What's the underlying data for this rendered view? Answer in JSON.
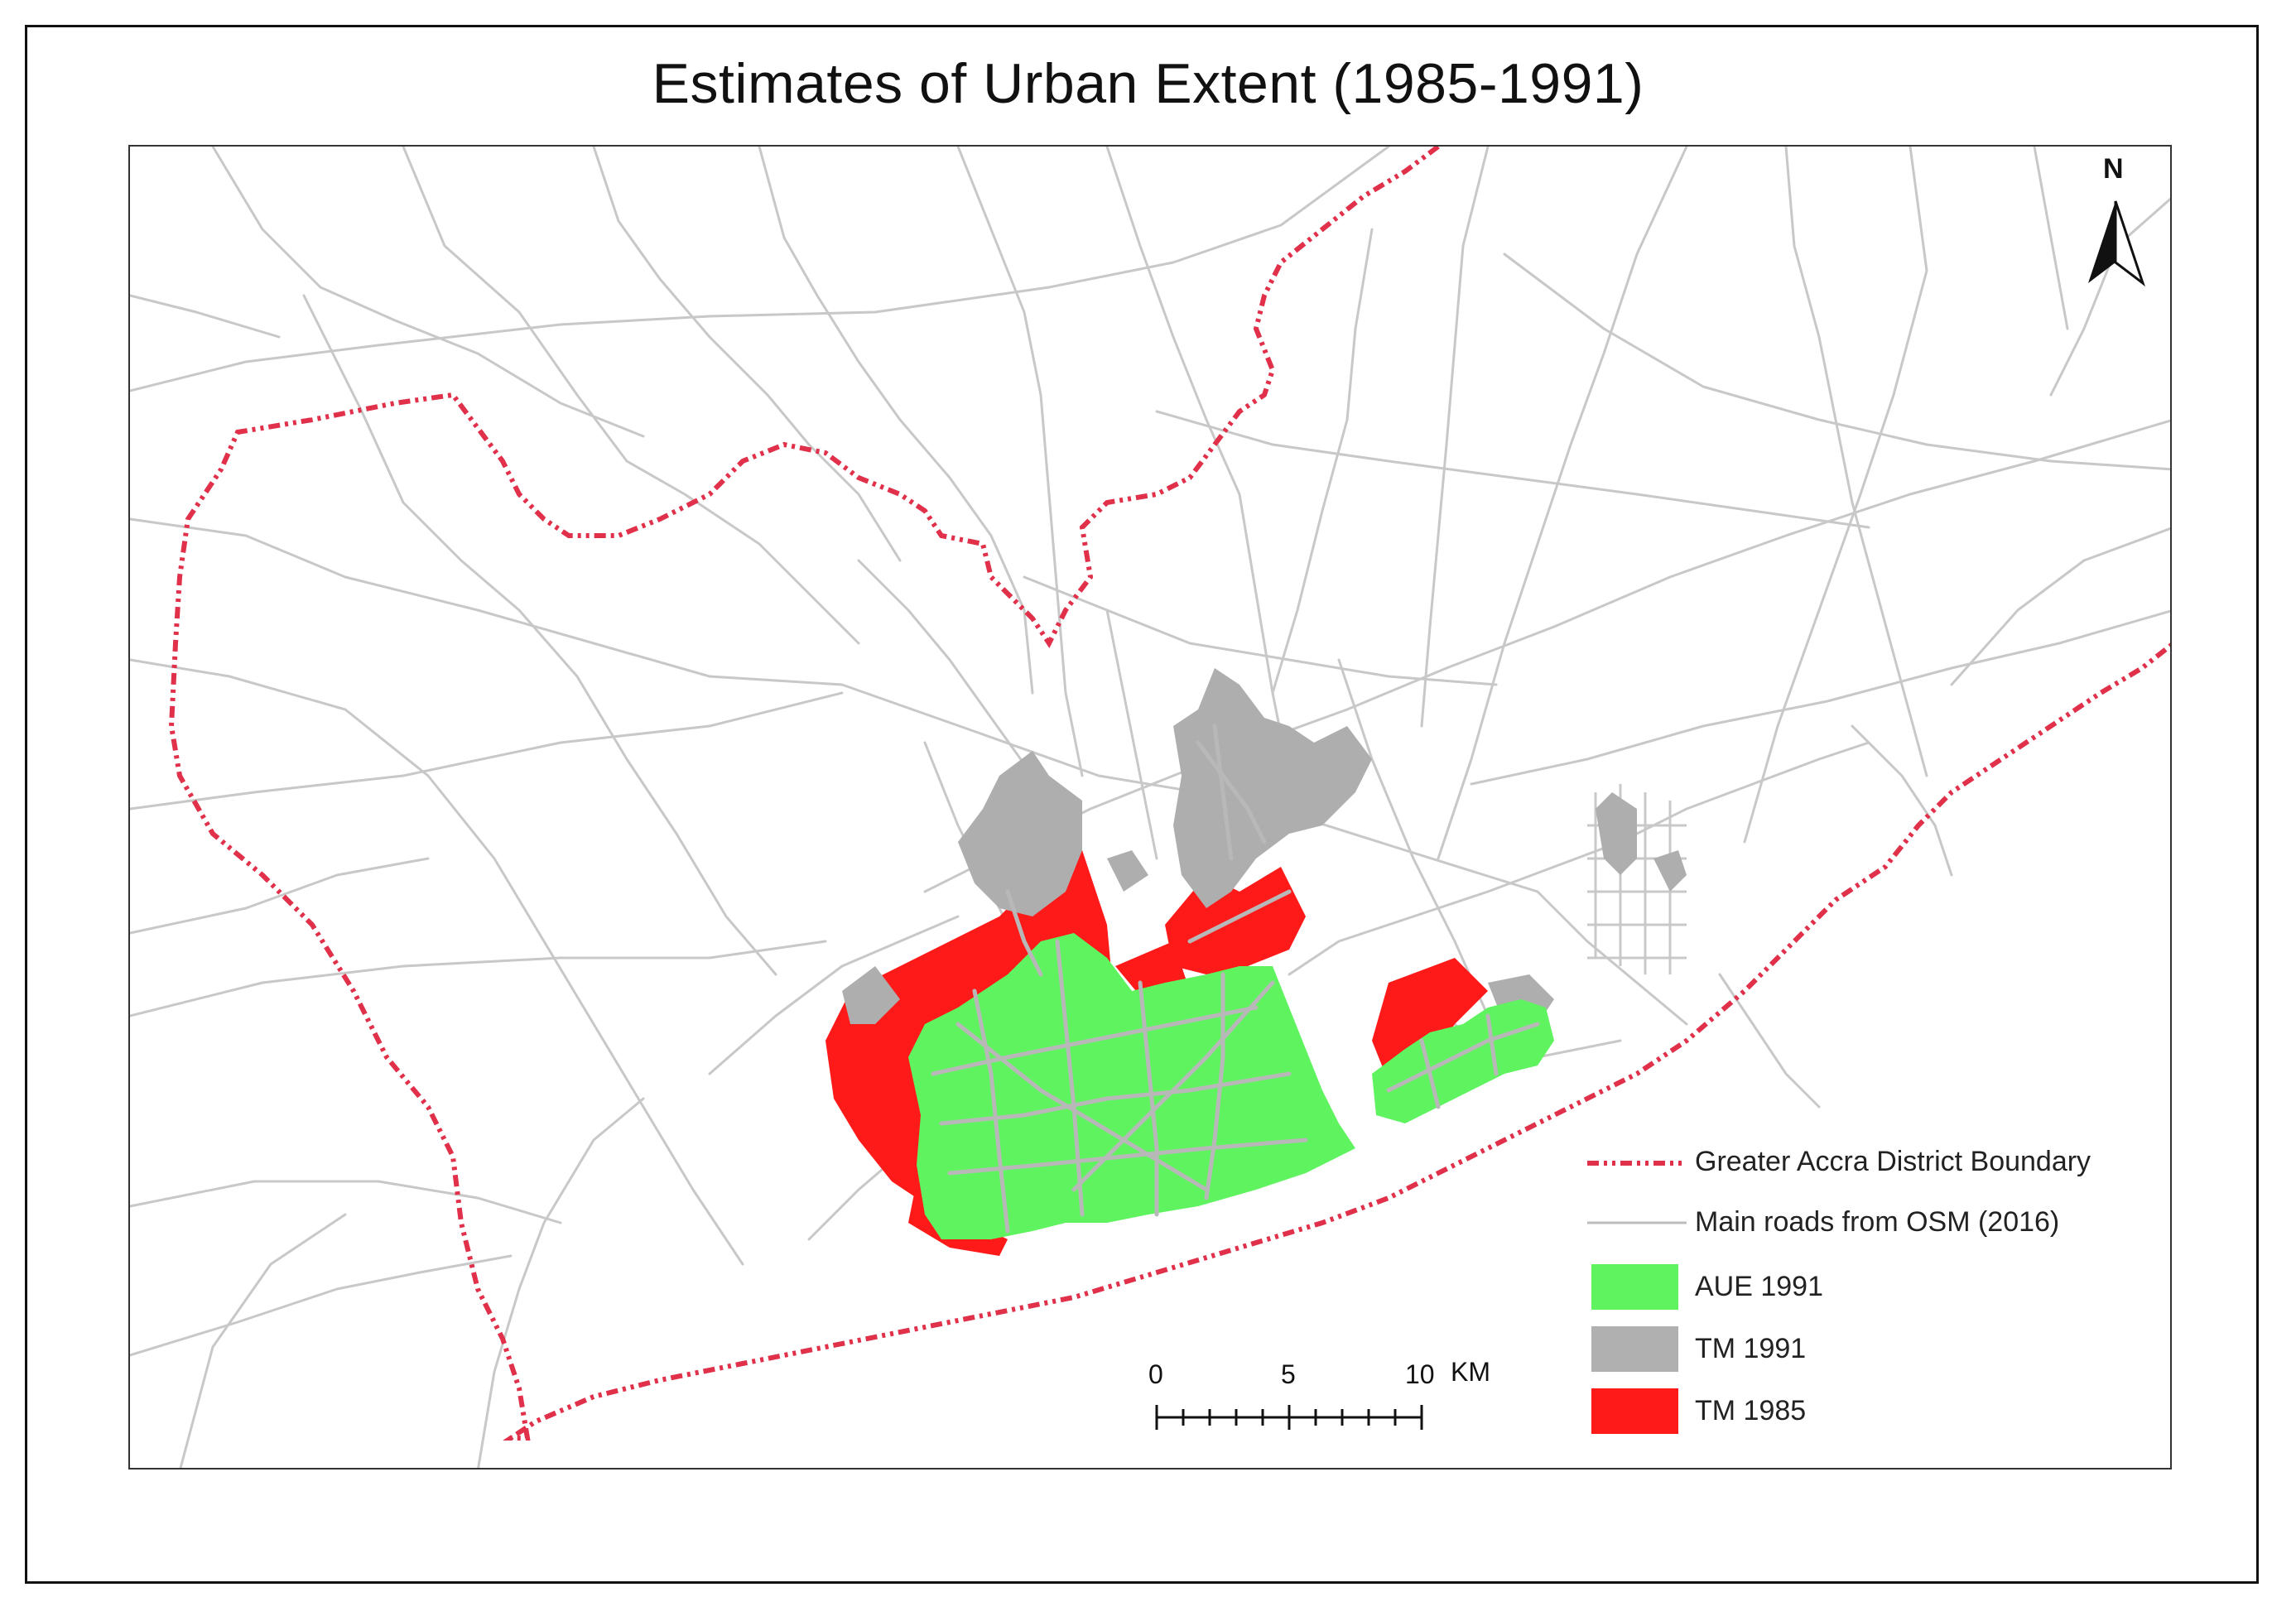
{
  "title": "Estimates of Urban Extent (1985-1991)",
  "north_label": "N",
  "legend": {
    "boundary": {
      "label": "Greater Accra District Boundary",
      "color": "#e0304a"
    },
    "roads": {
      "label": "Main roads from OSM (2016)",
      "color": "#bdbdbd"
    },
    "aue1991": {
      "label": "AUE 1991",
      "color": "#5ff45f"
    },
    "tm1991": {
      "label": "TM 1991",
      "color": "#b0b0b0"
    },
    "tm1985": {
      "label": "TM 1985",
      "color": "#ff1a1a"
    }
  },
  "scale_bar": {
    "ticks": [
      "0",
      "5",
      "10"
    ],
    "unit": "KM"
  },
  "colors": {
    "boundary": "#e0304a",
    "roads": "#c8c8c8",
    "urban_green": "#5ff45f",
    "urban_gray": "#aeaeae",
    "urban_red": "#ff1a1a"
  }
}
